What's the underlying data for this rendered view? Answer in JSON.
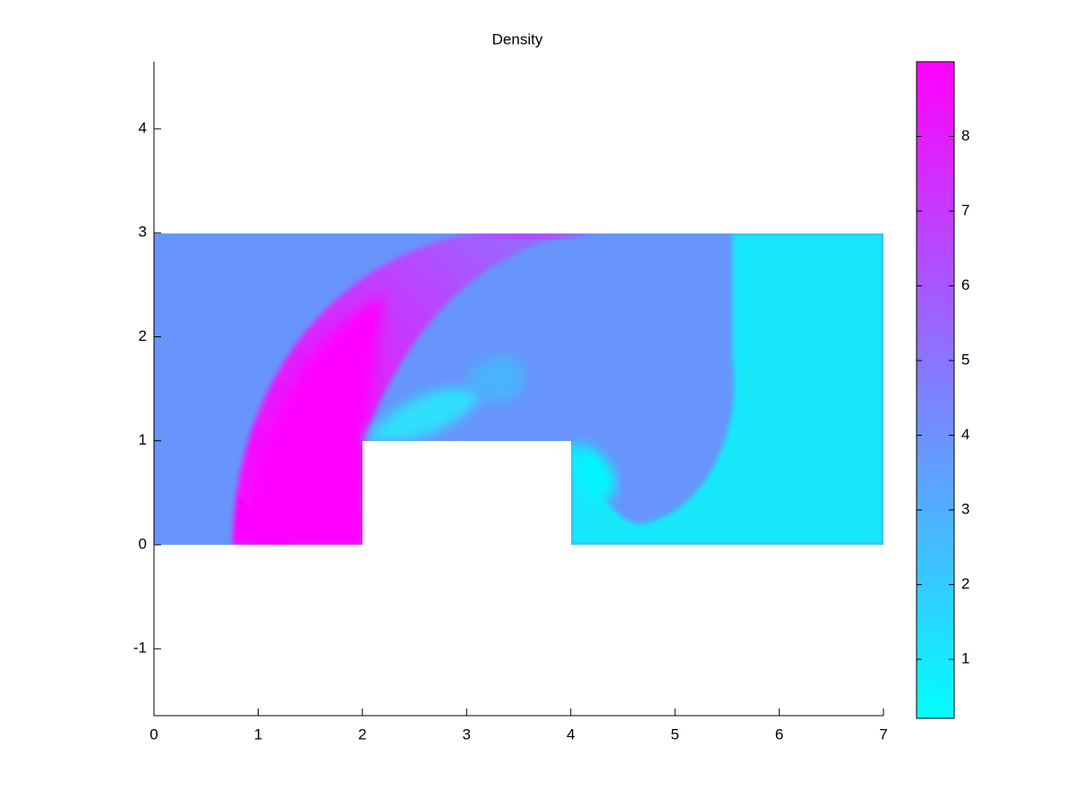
{
  "chart_data": {
    "type": "heatmap",
    "title": "Density",
    "xlim": [
      0,
      7
    ],
    "ylim": [
      -1.643,
      4.645
    ],
    "xticks": [
      0,
      1,
      2,
      3,
      4,
      5,
      6,
      7
    ],
    "yticks": [
      -1,
      0,
      1,
      2,
      3,
      4
    ],
    "colorbar": {
      "clim": [
        0.21,
        9.0
      ],
      "ticks": [
        1,
        2,
        3,
        4,
        5,
        6,
        7,
        8
      ],
      "colormap": [
        "#00ffff",
        "#ff00ff"
      ]
    }
  }
}
